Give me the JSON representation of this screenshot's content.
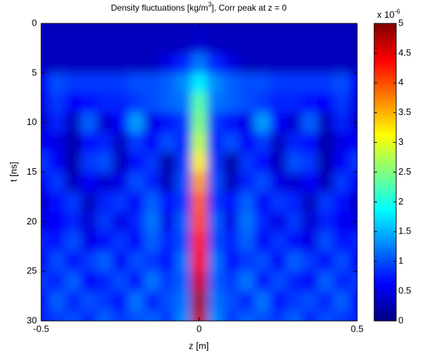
{
  "chart_data": {
    "type": "heatmap",
    "title": "Density fluctuations [kg/m",
    "title_superscript": "3",
    "title_end": "], Corr peak at z = 0",
    "x_label": "z [m]",
    "y_label": "t [ns]",
    "x": [
      -0.5,
      -0.45,
      -0.4,
      -0.35,
      -0.3,
      -0.25,
      -0.2,
      -0.15,
      -0.1,
      -0.05,
      0,
      0.05,
      0.1,
      0.15,
      0.2,
      0.25,
      0.3,
      0.35,
      0.4,
      0.45,
      0.5
    ],
    "y": [
      0,
      2,
      4,
      6,
      8,
      10,
      12,
      14,
      16,
      18,
      20,
      22,
      24,
      26,
      28,
      30
    ],
    "values": [
      [
        0.3,
        0.3,
        0.3,
        0.3,
        0.3,
        0.3,
        0.3,
        0.3,
        0.3,
        0.3,
        0.3,
        0.3,
        0.3,
        0.3,
        0.3,
        0.3,
        0.3,
        0.3,
        0.3,
        0.3,
        0.3
      ],
      [
        0.3,
        0.3,
        0.3,
        0.3,
        0.3,
        0.3,
        0.3,
        0.3,
        0.3,
        0.3,
        0.4,
        0.3,
        0.3,
        0.3,
        0.3,
        0.3,
        0.3,
        0.3,
        0.3,
        0.3,
        0.3
      ],
      [
        0.3,
        0.3,
        0.3,
        0.3,
        0.3,
        0.3,
        0.3,
        0.3,
        0.5,
        0.8,
        1.2,
        0.8,
        0.5,
        0.3,
        0.3,
        0.3,
        0.3,
        0.3,
        0.3,
        0.3,
        0.3
      ],
      [
        0.6,
        1.0,
        0.9,
        0.9,
        0.9,
        0.9,
        1.0,
        1.0,
        1.1,
        1.3,
        1.8,
        1.3,
        1.1,
        1.0,
        1.0,
        0.9,
        0.9,
        0.9,
        0.9,
        1.0,
        0.6
      ],
      [
        0.5,
        0.9,
        0.6,
        0.7,
        0.8,
        0.8,
        0.9,
        1.0,
        1.1,
        1.2,
        2.3,
        1.2,
        1.1,
        1.0,
        0.9,
        0.8,
        0.8,
        0.7,
        0.6,
        0.9,
        0.5
      ],
      [
        0.4,
        0.8,
        0.3,
        1.1,
        0.4,
        0.6,
        1.4,
        0.5,
        0.7,
        0.9,
        2.5,
        0.9,
        0.7,
        0.5,
        1.4,
        0.6,
        0.4,
        1.1,
        0.3,
        0.8,
        0.4
      ],
      [
        0.6,
        0.5,
        0.2,
        0.7,
        0.8,
        0.3,
        0.9,
        0.6,
        1.0,
        0.8,
        2.8,
        0.8,
        1.0,
        0.6,
        0.9,
        0.3,
        0.8,
        0.7,
        0.2,
        0.5,
        0.6
      ],
      [
        0.9,
        0.6,
        0.2,
        0.9,
        1.0,
        0.3,
        0.7,
        0.9,
        0.2,
        0.9,
        3.2,
        0.9,
        0.2,
        0.9,
        0.7,
        0.3,
        1.0,
        0.9,
        0.2,
        0.6,
        0.9
      ],
      [
        0.6,
        0.9,
        0.3,
        0.6,
        0.4,
        0.5,
        1.0,
        0.8,
        0.3,
        1.0,
        3.6,
        1.0,
        0.3,
        0.8,
        1.0,
        0.5,
        0.4,
        0.6,
        0.3,
        0.9,
        0.6
      ],
      [
        0.4,
        0.7,
        0.9,
        0.3,
        0.8,
        0.9,
        0.6,
        1.1,
        0.7,
        0.9,
        3.9,
        0.9,
        0.7,
        1.1,
        0.6,
        0.9,
        0.8,
        0.3,
        0.9,
        0.7,
        0.4
      ],
      [
        0.5,
        0.6,
        0.8,
        0.4,
        0.9,
        0.5,
        0.8,
        1.2,
        0.5,
        1.1,
        4.0,
        1.1,
        0.5,
        1.2,
        0.8,
        0.5,
        0.9,
        0.4,
        0.8,
        0.6,
        0.5
      ],
      [
        0.8,
        0.7,
        1.0,
        0.5,
        0.7,
        0.9,
        0.6,
        1.1,
        0.8,
        1.0,
        4.2,
        1.0,
        0.8,
        1.1,
        0.6,
        0.9,
        0.7,
        0.5,
        1.0,
        0.7,
        0.8
      ],
      [
        0.6,
        1.0,
        0.7,
        0.9,
        1.1,
        0.6,
        1.0,
        0.9,
        0.7,
        1.2,
        4.4,
        1.2,
        0.7,
        0.9,
        1.0,
        0.6,
        1.1,
        0.9,
        0.7,
        1.0,
        0.6
      ],
      [
        0.9,
        0.8,
        1.1,
        0.6,
        0.8,
        1.0,
        0.7,
        1.2,
        0.9,
        1.1,
        4.6,
        1.1,
        0.9,
        1.2,
        0.7,
        1.0,
        0.8,
        0.6,
        1.1,
        0.8,
        0.9
      ],
      [
        0.7,
        1.1,
        0.8,
        1.0,
        0.9,
        0.7,
        1.2,
        0.8,
        1.0,
        1.2,
        4.8,
        1.2,
        1.0,
        0.8,
        1.2,
        0.7,
        0.9,
        1.0,
        0.8,
        1.1,
        0.7
      ],
      [
        0.8,
        0.9,
        1.0,
        0.8,
        1.1,
        0.9,
        1.0,
        1.1,
        0.9,
        1.3,
        4.7,
        1.3,
        0.9,
        1.1,
        1.0,
        0.9,
        1.1,
        0.8,
        1.0,
        0.9,
        0.8
      ]
    ],
    "xlim": [
      -0.5,
      0.5
    ],
    "xticks": [
      -0.5,
      0,
      0.5
    ],
    "ylim": [
      0,
      30
    ],
    "yticks": [
      0,
      5,
      10,
      15,
      20,
      25,
      30
    ],
    "y_direction": "reverse",
    "colormap": "jet",
    "clim": [
      0,
      5
    ],
    "colorbar_ticks": [
      0,
      0.5,
      1,
      1.5,
      2,
      2.5,
      3,
      3.5,
      4,
      4.5,
      5
    ],
    "colorbar_multiplier": "x 10",
    "colorbar_multiplier_exponent": "-6"
  }
}
